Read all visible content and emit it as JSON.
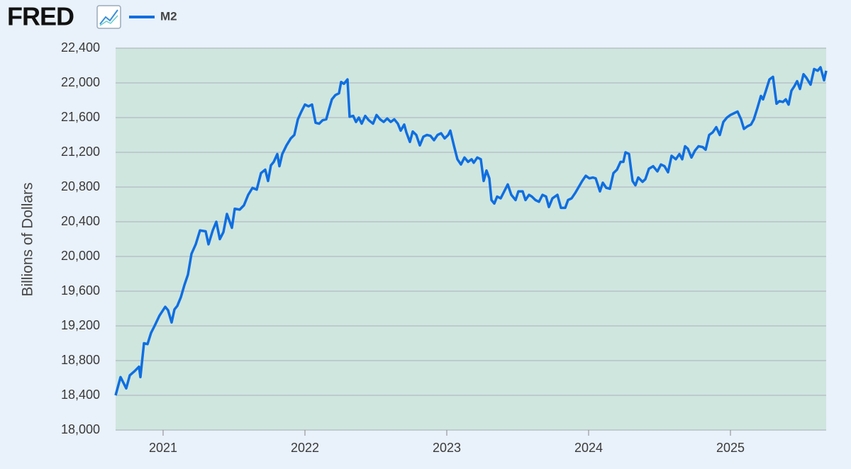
{
  "logo": "FRED",
  "chart_data": {
    "type": "line",
    "y_label": "Billions of Dollars",
    "x": [
      2020.665,
      2020.7,
      2020.74,
      2020.765,
      2020.8,
      2020.83,
      2020.84,
      2020.865,
      2020.89,
      2020.915,
      2020.94,
      2020.975,
      2021.015,
      2021.035,
      2021.06,
      2021.08,
      2021.1,
      2021.125,
      2021.15,
      2021.175,
      2021.2,
      2021.23,
      2021.26,
      2021.3,
      2021.32,
      2021.35,
      2021.375,
      2021.4,
      2021.425,
      2021.45,
      2021.485,
      2021.505,
      2021.54,
      2021.57,
      2021.6,
      2021.63,
      2021.66,
      2021.69,
      2021.72,
      2021.74,
      2021.76,
      2021.78,
      2021.805,
      2021.82,
      2021.84,
      2021.87,
      2021.9,
      2021.925,
      2021.95,
      2021.975,
      2022.0,
      2022.025,
      2022.05,
      2022.075,
      2022.1,
      2022.125,
      2022.15,
      2022.165,
      2022.19,
      2022.215,
      2022.24,
      2022.255,
      2022.275,
      2022.3,
      2022.315,
      2022.34,
      2022.36,
      2022.38,
      2022.4,
      2022.425,
      2022.45,
      2022.48,
      2022.505,
      2022.53,
      2022.555,
      2022.58,
      2022.605,
      2022.63,
      2022.655,
      2022.675,
      2022.7,
      2022.715,
      2022.74,
      2022.76,
      2022.785,
      2022.81,
      2022.835,
      2022.86,
      2022.885,
      2022.91,
      2022.935,
      2022.96,
      2022.985,
      2023.01,
      2023.025,
      2023.05,
      2023.075,
      2023.1,
      2023.125,
      2023.15,
      2023.175,
      2023.19,
      2023.215,
      2023.24,
      2023.26,
      2023.28,
      2023.3,
      2023.315,
      2023.335,
      2023.355,
      2023.38,
      2023.405,
      2023.43,
      2023.455,
      2023.485,
      2023.505,
      2023.535,
      2023.555,
      2023.58,
      2023.6,
      2023.625,
      2023.65,
      2023.675,
      2023.7,
      2023.72,
      2023.745,
      2023.78,
      2023.805,
      2023.835,
      2023.855,
      2023.88,
      2023.905,
      2023.93,
      2023.955,
      2023.98,
      2024.005,
      2024.03,
      2024.05,
      2024.08,
      2024.1,
      2024.125,
      2024.15,
      2024.175,
      2024.2,
      2024.225,
      2024.245,
      2024.26,
      2024.285,
      2024.31,
      2024.33,
      2024.35,
      2024.38,
      2024.4,
      2024.425,
      2024.455,
      2024.485,
      2024.51,
      2024.535,
      2024.56,
      2024.585,
      2024.615,
      2024.64,
      2024.66,
      2024.68,
      2024.7,
      2024.725,
      2024.75,
      2024.775,
      2024.805,
      2024.825,
      2024.85,
      2024.875,
      2024.9,
      2024.925,
      2024.95,
      2024.975,
      2025.0,
      2025.025,
      2025.05,
      2025.075,
      2025.095,
      2025.12,
      2025.145,
      2025.165,
      2025.19,
      2025.215,
      2025.23,
      2025.25,
      2025.275,
      2025.3,
      2025.325,
      2025.345,
      2025.37,
      2025.39,
      2025.41,
      2025.43,
      2025.45,
      2025.47,
      2025.49,
      2025.515,
      2025.535,
      2025.565,
      2025.59,
      2025.615,
      2025.635,
      2025.66,
      2025.675
    ],
    "series": [
      {
        "name": "M2",
        "color": "#0f6ee0",
        "values": [
          18400,
          18610,
          18480,
          18630,
          18680,
          18730,
          18610,
          19000,
          18990,
          19120,
          19200,
          19320,
          19420,
          19380,
          19240,
          19390,
          19430,
          19530,
          19670,
          19790,
          20030,
          20140,
          20300,
          20290,
          20140,
          20300,
          20400,
          20200,
          20280,
          20490,
          20330,
          20550,
          20540,
          20590,
          20710,
          20790,
          20770,
          20960,
          21000,
          20870,
          21050,
          21090,
          21180,
          21040,
          21180,
          21280,
          21360,
          21400,
          21580,
          21670,
          21750,
          21730,
          21750,
          21540,
          21530,
          21570,
          21580,
          21670,
          21810,
          21860,
          21880,
          22010,
          21990,
          22040,
          21610,
          21620,
          21550,
          21600,
          21530,
          21620,
          21570,
          21530,
          21630,
          21580,
          21550,
          21590,
          21550,
          21580,
          21530,
          21450,
          21520,
          21430,
          21320,
          21440,
          21400,
          21280,
          21380,
          21400,
          21390,
          21340,
          21400,
          21420,
          21360,
          21400,
          21450,
          21280,
          21120,
          21060,
          21140,
          21090,
          21120,
          21080,
          21140,
          21120,
          20870,
          20990,
          20900,
          20650,
          20610,
          20690,
          20670,
          20750,
          20830,
          20710,
          20650,
          20750,
          20750,
          20650,
          20710,
          20690,
          20650,
          20630,
          20710,
          20690,
          20570,
          20670,
          20710,
          20560,
          20560,
          20650,
          20670,
          20730,
          20800,
          20870,
          20930,
          20900,
          20910,
          20900,
          20750,
          20850,
          20790,
          20780,
          20960,
          21000,
          21090,
          21090,
          21200,
          21180,
          20870,
          20820,
          20910,
          20860,
          20890,
          21010,
          21040,
          20980,
          21060,
          21040,
          20970,
          21160,
          21120,
          21180,
          21120,
          21270,
          21240,
          21140,
          21220,
          21270,
          21260,
          21230,
          21400,
          21430,
          21490,
          21400,
          21550,
          21600,
          21630,
          21650,
          21670,
          21580,
          21470,
          21500,
          21520,
          21580,
          21710,
          21850,
          21810,
          21910,
          22040,
          22070,
          21760,
          21790,
          21780,
          21810,
          21750,
          21910,
          21960,
          22020,
          21930,
          22100,
          22060,
          21980,
          22160,
          22140,
          22180,
          22030,
          22140
        ]
      }
    ],
    "xlim": [
      2020.665,
      2025.675
    ],
    "xticks": [
      2021,
      2022,
      2023,
      2024,
      2025
    ],
    "ylim": [
      18000,
      22400
    ],
    "yticks": [
      {
        "value": 18000,
        "label": "18,000"
      },
      {
        "value": 18400,
        "label": "18,400"
      },
      {
        "value": 18800,
        "label": "18,800"
      },
      {
        "value": 19200,
        "label": "19,200"
      },
      {
        "value": 19600,
        "label": "19,600"
      },
      {
        "value": 20000,
        "label": "20,000"
      },
      {
        "value": 20400,
        "label": "20,400"
      },
      {
        "value": 20800,
        "label": "20,800"
      },
      {
        "value": 21200,
        "label": "21,200"
      },
      {
        "value": 21600,
        "label": "21,600"
      },
      {
        "value": 22000,
        "label": "22,000"
      },
      {
        "value": 22400,
        "label": "22,400"
      }
    ],
    "grid": true,
    "plot_background": "#cfe6df"
  }
}
